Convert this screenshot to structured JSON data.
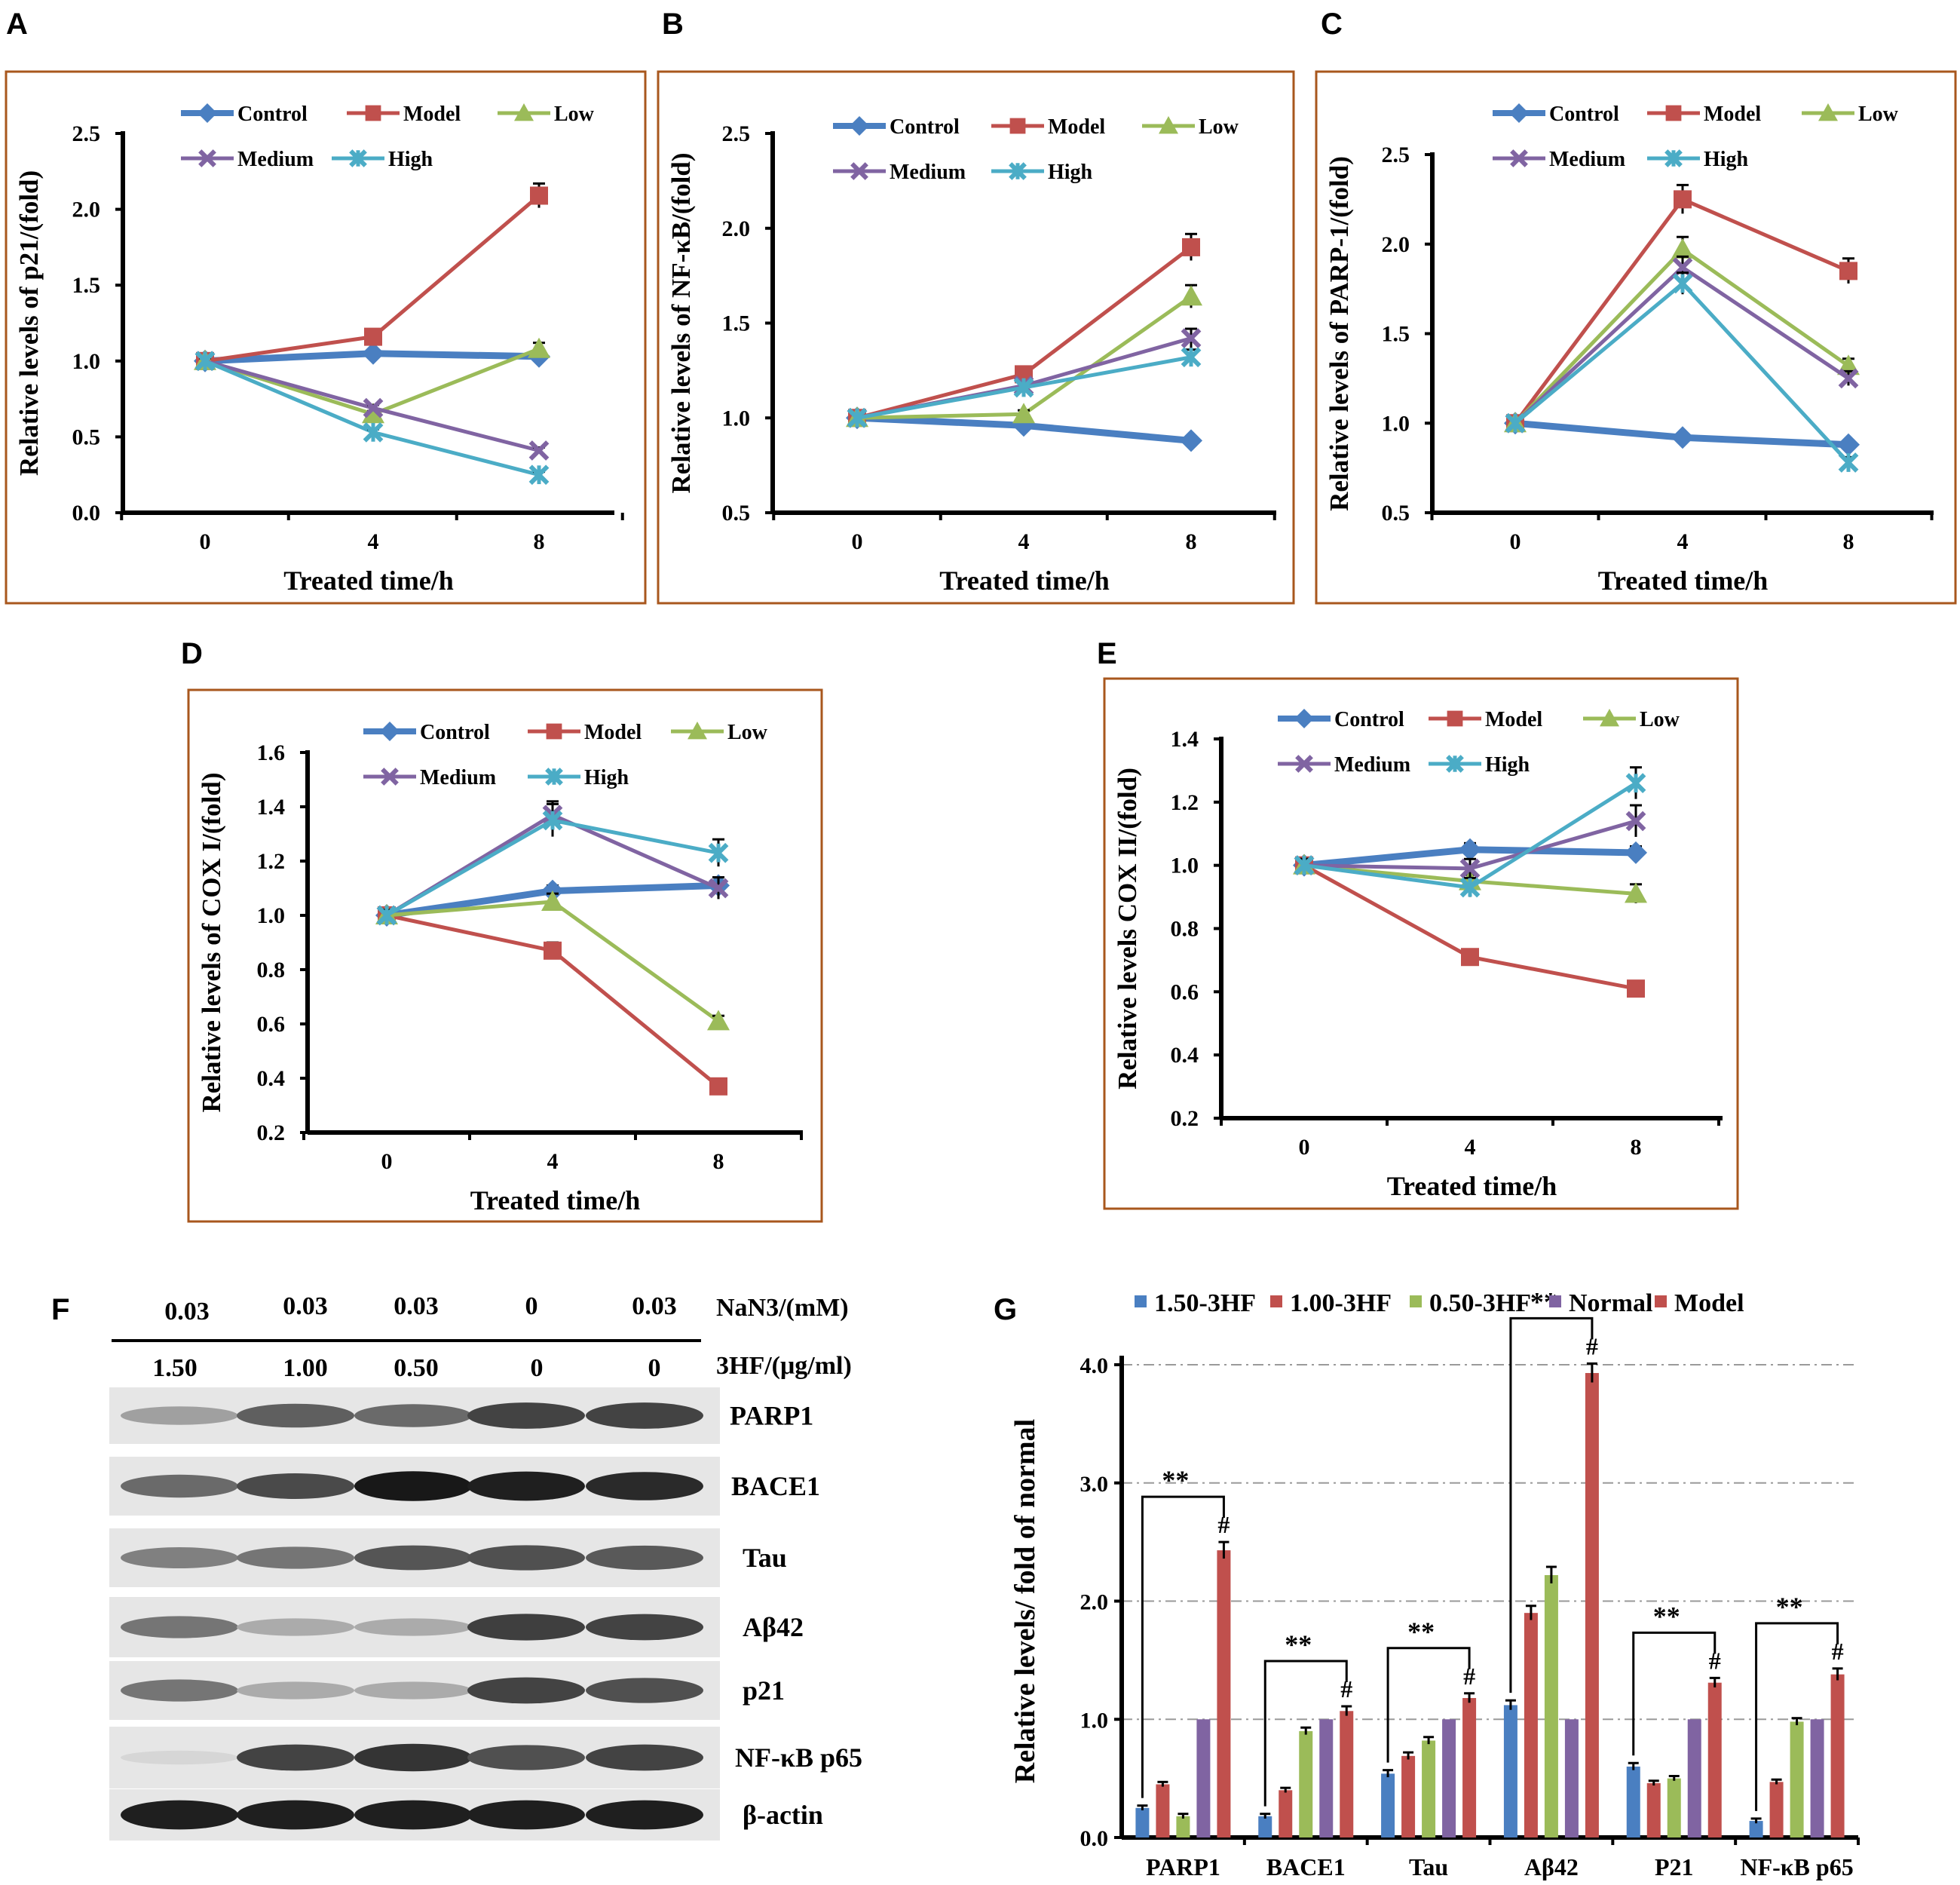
{
  "chart_data": [
    {
      "panel": "A",
      "type": "line",
      "xlabel": "Treated time/h",
      "ylabel": "Relative levels of p21/(fold)",
      "x": [
        0,
        4,
        8
      ],
      "ylim": [
        0,
        2.5
      ],
      "yticks": [
        "0.0",
        "0.5",
        "1.0",
        "1.5",
        "2.0",
        "2.5"
      ],
      "series": [
        {
          "name": "Control",
          "values": [
            1.0,
            1.05,
            1.03
          ],
          "err": [
            0.02,
            0.02,
            0.02
          ]
        },
        {
          "name": "Model",
          "values": [
            1.0,
            1.16,
            2.09
          ],
          "err": [
            0.02,
            0.03,
            0.08
          ]
        },
        {
          "name": "Low",
          "values": [
            1.0,
            0.65,
            1.08
          ],
          "err": [
            0.02,
            0.02,
            0.04
          ]
        },
        {
          "name": "Medium",
          "values": [
            1.0,
            0.69,
            0.41
          ],
          "err": [
            0.02,
            0.02,
            0.02
          ]
        },
        {
          "name": "High",
          "values": [
            1.0,
            0.53,
            0.25
          ],
          "err": [
            0.02,
            0.02,
            0.02
          ]
        }
      ]
    },
    {
      "panel": "B",
      "type": "line",
      "xlabel": "Treated time/h",
      "ylabel": "Relative levels of NF-κB/(fold)",
      "x": [
        0,
        4,
        8
      ],
      "ylim": [
        0.5,
        2.5
      ],
      "yticks": [
        "0.5",
        "1.0",
        "1.5",
        "2.0",
        "2.5"
      ],
      "series": [
        {
          "name": "Control",
          "values": [
            1.0,
            0.96,
            0.88
          ],
          "err": [
            0.02,
            0.02,
            0.02
          ]
        },
        {
          "name": "Model",
          "values": [
            1.0,
            1.23,
            1.9
          ],
          "err": [
            0.02,
            0.03,
            0.07
          ]
        },
        {
          "name": "Low",
          "values": [
            1.0,
            1.02,
            1.64
          ],
          "err": [
            0.02,
            0.02,
            0.06
          ]
        },
        {
          "name": "Medium",
          "values": [
            1.0,
            1.17,
            1.42
          ],
          "err": [
            0.02,
            0.02,
            0.05
          ]
        },
        {
          "name": "High",
          "values": [
            1.0,
            1.16,
            1.32
          ],
          "err": [
            0.02,
            0.02,
            0.04
          ]
        }
      ]
    },
    {
      "panel": "C",
      "type": "line",
      "xlabel": "Treated time/h",
      "ylabel": "Relative levels of PARP-1/(fold)",
      "x": [
        0,
        4,
        8
      ],
      "ylim": [
        0.5,
        2.5
      ],
      "yticks": [
        "0.5",
        "1.0",
        "1.5",
        "2.0",
        "2.5"
      ],
      "series": [
        {
          "name": "Control",
          "values": [
            1.0,
            0.92,
            0.88
          ],
          "err": [
            0.02,
            0.02,
            0.02
          ]
        },
        {
          "name": "Model",
          "values": [
            1.0,
            2.25,
            1.85
          ],
          "err": [
            0.02,
            0.08,
            0.07
          ]
        },
        {
          "name": "Low",
          "values": [
            1.0,
            1.97,
            1.32
          ],
          "err": [
            0.02,
            0.07,
            0.04
          ]
        },
        {
          "name": "Medium",
          "values": [
            1.0,
            1.87,
            1.25
          ],
          "err": [
            0.02,
            0.06,
            0.04
          ]
        },
        {
          "name": "High",
          "values": [
            1.0,
            1.78,
            0.78
          ],
          "err": [
            0.02,
            0.06,
            0.03
          ]
        }
      ]
    },
    {
      "panel": "D",
      "type": "line",
      "xlabel": "Treated time/h",
      "ylabel": "Relative levels of COX I/(fold)",
      "x": [
        0,
        4,
        8
      ],
      "ylim": [
        0.2,
        1.6
      ],
      "yticks": [
        "0.2",
        "0.4",
        "0.6",
        "0.8",
        "1.0",
        "1.2",
        "1.4",
        "1.6"
      ],
      "series": [
        {
          "name": "Control",
          "values": [
            1.0,
            1.09,
            1.11
          ],
          "err": [
            0.02,
            0.02,
            0.03
          ]
        },
        {
          "name": "Model",
          "values": [
            1.0,
            0.87,
            0.37
          ],
          "err": [
            0.02,
            0.03,
            0.02
          ]
        },
        {
          "name": "Low",
          "values": [
            1.0,
            1.05,
            0.61
          ],
          "err": [
            0.02,
            0.03,
            0.02
          ]
        },
        {
          "name": "Medium",
          "values": [
            1.0,
            1.37,
            1.1
          ],
          "err": [
            0.02,
            0.05,
            0.04
          ]
        },
        {
          "name": "High",
          "values": [
            1.0,
            1.35,
            1.23
          ],
          "err": [
            0.02,
            0.06,
            0.05
          ]
        }
      ]
    },
    {
      "panel": "E",
      "type": "line",
      "xlabel": "Treated time/h",
      "ylabel": "Relative levels COX II/(fold)",
      "x": [
        0,
        4,
        8
      ],
      "ylim": [
        0.2,
        1.4
      ],
      "yticks": [
        "0.2",
        "0.4",
        "0.6",
        "0.8",
        "1.0",
        "1.2",
        "1.4"
      ],
      "series": [
        {
          "name": "Control",
          "values": [
            1.0,
            1.05,
            1.04
          ],
          "err": [
            0.02,
            0.02,
            0.02
          ]
        },
        {
          "name": "Model",
          "values": [
            1.0,
            0.71,
            0.61
          ],
          "err": [
            0.02,
            0.02,
            0.02
          ]
        },
        {
          "name": "Low",
          "values": [
            1.0,
            0.95,
            0.91
          ],
          "err": [
            0.02,
            0.02,
            0.03
          ]
        },
        {
          "name": "Medium",
          "values": [
            1.0,
            0.99,
            1.14
          ],
          "err": [
            0.02,
            0.03,
            0.05
          ]
        },
        {
          "name": "High",
          "values": [
            1.0,
            0.93,
            1.26
          ],
          "err": [
            0.02,
            0.03,
            0.05
          ]
        }
      ]
    },
    {
      "panel": "G",
      "type": "bar",
      "ylabel": "Relative levels/ fold of normal",
      "categories": [
        "PARP1",
        "BACE1",
        "Tau",
        "Aβ42",
        "P21",
        "NF-κB p65"
      ],
      "ylim": [
        0,
        4.0
      ],
      "yticks": [
        "0.0",
        "1.0",
        "2.0",
        "3.0",
        "4.0"
      ],
      "series": [
        {
          "name": "1.50-3HF",
          "values": [
            0.25,
            0.18,
            0.54,
            1.12,
            0.6,
            0.14
          ],
          "err": [
            0.02,
            0.02,
            0.03,
            0.04,
            0.03,
            0.02
          ]
        },
        {
          "name": "1.00-3HF",
          "values": [
            0.45,
            0.4,
            0.69,
            1.9,
            0.46,
            0.47
          ],
          "err": [
            0.02,
            0.02,
            0.03,
            0.06,
            0.02,
            0.02
          ]
        },
        {
          "name": "0.50-3HF",
          "values": [
            0.18,
            0.9,
            0.82,
            2.22,
            0.5,
            0.98
          ],
          "err": [
            0.02,
            0.03,
            0.03,
            0.07,
            0.02,
            0.03
          ]
        },
        {
          "name": "Normal",
          "values": [
            1.0,
            1.0,
            1.0,
            1.0,
            1.0,
            1.0
          ],
          "err": [
            0,
            0,
            0,
            0,
            0,
            0
          ]
        },
        {
          "name": "Model",
          "values": [
            2.43,
            1.07,
            1.18,
            3.93,
            1.31,
            1.38
          ],
          "err": [
            0.07,
            0.04,
            0.04,
            0.08,
            0.04,
            0.05
          ]
        }
      ],
      "annotations": {
        "significance": "**",
        "hash": "#"
      }
    }
  ],
  "colors": {
    "Control": "#4a7fc1",
    "Model": "#c0504d",
    "Low": "#9bbb59",
    "Medium": "#8064a2",
    "High": "#4bacc6",
    "1.50-3HF": "#4a7fc1",
    "1.00-3HF": "#c0504d",
    "0.50-3HF": "#9bbb59",
    "Normal": "#8064a2"
  },
  "panel_letters": [
    "A",
    "B",
    "C",
    "D",
    "E",
    "F",
    "G"
  ],
  "x_tick_labels": [
    "0",
    "4",
    "8"
  ],
  "western_blot": {
    "panel": "F",
    "nan3_label": "NaN3/(mM)",
    "nan3_values": [
      "0.03",
      "0.03",
      "0.03",
      "0",
      "0.03"
    ],
    "hf_label": "3HF/(μg/ml)",
    "hf_values": [
      "1.50",
      "1.00",
      "0.50",
      "0",
      "0"
    ],
    "bands": [
      "PARP1",
      "BACE1",
      "Tau",
      "Aβ42",
      "p21",
      "NF-κB p65",
      "β-actin"
    ]
  }
}
